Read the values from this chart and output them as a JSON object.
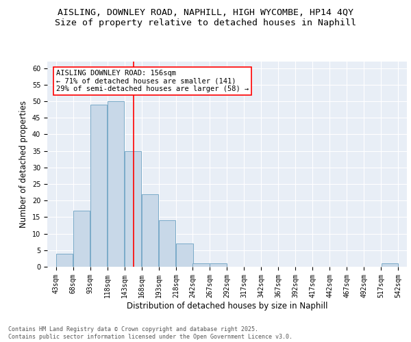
{
  "title_line1": "AISLING, DOWNLEY ROAD, NAPHILL, HIGH WYCOMBE, HP14 4QY",
  "title_line2": "Size of property relative to detached houses in Naphill",
  "xlabel": "Distribution of detached houses by size in Naphill",
  "ylabel": "Number of detached properties",
  "bar_color": "#c8d8e8",
  "bar_edge_color": "#7aaac8",
  "bg_color": "#e8eef6",
  "grid_color": "#ffffff",
  "annotation_text": "AISLING DOWNLEY ROAD: 156sqm\n← 71% of detached houses are smaller (141)\n29% of semi-detached houses are larger (58) →",
  "vline_x": 156,
  "bins": [
    43,
    68,
    93,
    118,
    143,
    168,
    193,
    218,
    242,
    267,
    292,
    317,
    342,
    367,
    392,
    417,
    442,
    467,
    492,
    517,
    542
  ],
  "bar_heights": [
    4,
    17,
    49,
    50,
    35,
    22,
    14,
    7,
    1,
    1,
    0,
    0,
    0,
    0,
    0,
    0,
    0,
    0,
    0,
    1
  ],
  "ylim": [
    0,
    62
  ],
  "yticks": [
    0,
    5,
    10,
    15,
    20,
    25,
    30,
    35,
    40,
    45,
    50,
    55,
    60
  ],
  "footer_text": "Contains HM Land Registry data © Crown copyright and database right 2025.\nContains public sector information licensed under the Open Government Licence v3.0.",
  "title_fontsize": 9.5,
  "subtitle_fontsize": 9.5,
  "axis_label_fontsize": 8.5,
  "tick_fontsize": 7,
  "annotation_fontsize": 7.5,
  "footer_fontsize": 6
}
